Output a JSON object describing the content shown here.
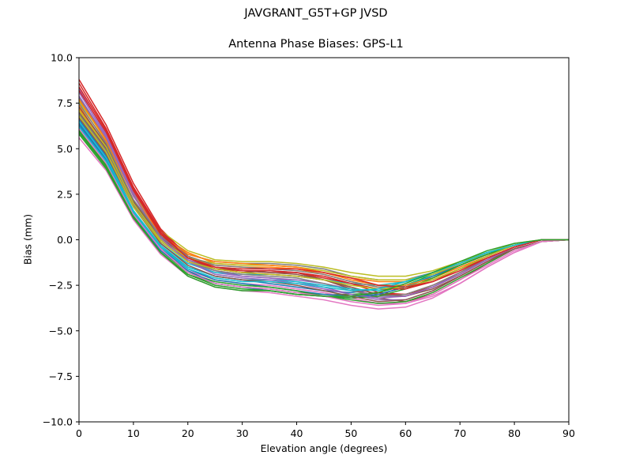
{
  "figure": {
    "suptitle": "JAVGRANT_G5T+GP JVSD"
  },
  "chart_data": {
    "type": "line",
    "title": "Antenna Phase Biases: GPS-L1",
    "xlabel": "Elevation angle (degrees)",
    "ylabel": "Bias (mm)",
    "xlim": [
      0,
      90
    ],
    "ylim": [
      -10,
      10
    ],
    "xticks": [
      0,
      10,
      20,
      30,
      40,
      50,
      60,
      70,
      80,
      90
    ],
    "yticks": [
      -10.0,
      -7.5,
      -5.0,
      -2.5,
      0.0,
      2.5,
      5.0,
      7.5,
      10.0
    ],
    "xtick_labels": [
      "0",
      "10",
      "20",
      "30",
      "40",
      "50",
      "60",
      "70",
      "80",
      "90"
    ],
    "ytick_labels": [
      "−10.0",
      "−7.5",
      "−5.0",
      "−2.5",
      "0.0",
      "2.5",
      "5.0",
      "7.5",
      "10.0"
    ],
    "grid": false,
    "legend": false,
    "x": [
      0,
      5,
      10,
      15,
      20,
      25,
      30,
      35,
      40,
      45,
      50,
      55,
      60,
      65,
      70,
      75,
      80,
      85,
      90
    ],
    "series": [
      {
        "color": "#1f77b4",
        "values": [
          6.6,
          4.6,
          1.6,
          -0.4,
          -1.5,
          -2.0,
          -2.2,
          -2.4,
          -2.6,
          -2.8,
          -2.9,
          -2.7,
          -2.3,
          -1.8,
          -1.2,
          -0.7,
          -0.3,
          0.0,
          0.0
        ]
      },
      {
        "color": "#ff7f0e",
        "values": [
          7.4,
          5.4,
          2.4,
          0.3,
          -0.7,
          -1.3,
          -1.4,
          -1.4,
          -1.5,
          -1.8,
          -2.1,
          -2.3,
          -2.3,
          -1.9,
          -1.4,
          -0.8,
          -0.3,
          0.0,
          0.0
        ]
      },
      {
        "color": "#2ca02c",
        "values": [
          5.9,
          4.0,
          1.2,
          -0.7,
          -1.9,
          -2.4,
          -2.6,
          -2.7,
          -2.9,
          -3.0,
          -3.0,
          -2.9,
          -2.5,
          -1.9,
          -1.3,
          -0.7,
          -0.3,
          0.0,
          0.0
        ]
      },
      {
        "color": "#d62728",
        "values": [
          8.8,
          6.3,
          3.1,
          0.6,
          -0.9,
          -1.5,
          -1.7,
          -1.8,
          -1.8,
          -2.0,
          -2.4,
          -2.9,
          -3.0,
          -2.6,
          -1.9,
          -1.1,
          -0.4,
          0.0,
          0.0
        ]
      },
      {
        "color": "#9467bd",
        "values": [
          8.3,
          5.8,
          2.6,
          0.2,
          -1.2,
          -1.8,
          -2.0,
          -2.1,
          -2.2,
          -2.4,
          -2.7,
          -3.1,
          -3.1,
          -2.6,
          -1.8,
          -1.1,
          -0.4,
          0.0,
          0.0
        ]
      },
      {
        "color": "#8c564b",
        "values": [
          7.0,
          5.0,
          2.0,
          0.0,
          -1.1,
          -1.6,
          -1.8,
          -1.7,
          -1.8,
          -2.2,
          -2.7,
          -3.2,
          -3.4,
          -3.0,
          -2.2,
          -1.3,
          -0.5,
          -0.1,
          0.0
        ]
      },
      {
        "color": "#e377c2",
        "values": [
          6.2,
          4.3,
          1.5,
          -0.5,
          -1.7,
          -2.2,
          -2.4,
          -2.5,
          -2.7,
          -2.9,
          -3.2,
          -3.5,
          -3.5,
          -3.1,
          -2.4,
          -1.5,
          -0.7,
          -0.1,
          0.0
        ]
      },
      {
        "color": "#7f7f7f",
        "values": [
          7.8,
          5.6,
          2.5,
          0.4,
          -0.8,
          -1.2,
          -1.3,
          -1.3,
          -1.4,
          -1.6,
          -2.0,
          -2.2,
          -2.2,
          -1.8,
          -1.3,
          -0.7,
          -0.3,
          0.0,
          0.0
        ]
      },
      {
        "color": "#bcbd22",
        "values": [
          7.6,
          5.5,
          2.5,
          0.5,
          -0.6,
          -1.1,
          -1.2,
          -1.2,
          -1.3,
          -1.5,
          -1.8,
          -2.0,
          -2.0,
          -1.7,
          -1.2,
          -0.7,
          -0.2,
          0.0,
          0.0
        ]
      },
      {
        "color": "#17becf",
        "values": [
          6.8,
          4.7,
          1.8,
          -0.2,
          -1.3,
          -1.8,
          -1.9,
          -1.9,
          -2.0,
          -2.2,
          -2.4,
          -2.5,
          -2.3,
          -1.9,
          -1.3,
          -0.7,
          -0.3,
          0.0,
          0.0
        ]
      },
      {
        "color": "#1f77b4",
        "values": [
          6.4,
          4.4,
          1.5,
          -0.5,
          -1.6,
          -2.2,
          -2.4,
          -2.6,
          -2.8,
          -3.0,
          -3.1,
          -3.0,
          -2.6,
          -2.0,
          -1.4,
          -0.8,
          -0.3,
          0.0,
          0.0
        ]
      },
      {
        "color": "#ff7f0e",
        "values": [
          7.2,
          5.2,
          2.2,
          0.1,
          -1.0,
          -1.4,
          -1.5,
          -1.5,
          -1.6,
          -1.9,
          -2.3,
          -2.6,
          -2.6,
          -2.2,
          -1.6,
          -0.9,
          -0.3,
          0.0,
          0.0
        ]
      },
      {
        "color": "#2ca02c",
        "values": [
          6.0,
          4.1,
          1.3,
          -0.6,
          -1.8,
          -2.3,
          -2.5,
          -2.6,
          -2.8,
          -3.1,
          -3.3,
          -3.5,
          -3.4,
          -2.9,
          -2.1,
          -1.3,
          -0.5,
          -0.1,
          0.0
        ]
      },
      {
        "color": "#d62728",
        "values": [
          8.6,
          6.1,
          2.9,
          0.5,
          -0.9,
          -1.6,
          -1.8,
          -1.9,
          -2.0,
          -2.2,
          -2.6,
          -3.0,
          -3.0,
          -2.5,
          -1.8,
          -1.0,
          -0.4,
          0.0,
          0.0
        ]
      },
      {
        "color": "#9467bd",
        "values": [
          8.1,
          5.7,
          2.5,
          0.2,
          -1.1,
          -1.7,
          -2.0,
          -2.1,
          -2.3,
          -2.6,
          -3.0,
          -3.3,
          -3.3,
          -2.8,
          -2.0,
          -1.2,
          -0.5,
          -0.1,
          0.0
        ]
      },
      {
        "color": "#8c564b",
        "values": [
          7.3,
          5.2,
          2.1,
          0.1,
          -1.0,
          -1.5,
          -1.7,
          -1.8,
          -1.9,
          -2.2,
          -2.6,
          -3.0,
          -3.1,
          -2.7,
          -2.0,
          -1.2,
          -0.4,
          0.0,
          0.0
        ]
      },
      {
        "color": "#e377c2",
        "values": [
          5.6,
          3.8,
          1.1,
          -0.8,
          -2.0,
          -2.6,
          -2.8,
          -2.9,
          -3.1,
          -3.3,
          -3.6,
          -3.8,
          -3.7,
          -3.2,
          -2.4,
          -1.5,
          -0.7,
          -0.1,
          0.0
        ]
      },
      {
        "color": "#7f7f7f",
        "values": [
          6.9,
          4.9,
          1.9,
          -0.1,
          -1.2,
          -1.7,
          -1.9,
          -2.0,
          -2.1,
          -2.4,
          -2.8,
          -3.1,
          -3.0,
          -2.5,
          -1.8,
          -1.0,
          -0.4,
          0.0,
          0.0
        ]
      },
      {
        "color": "#bcbd22",
        "values": [
          7.1,
          5.1,
          2.0,
          0.0,
          -1.0,
          -1.3,
          -1.4,
          -1.4,
          -1.5,
          -1.7,
          -2.0,
          -2.2,
          -2.2,
          -1.9,
          -1.3,
          -0.8,
          -0.3,
          0.0,
          0.0
        ]
      },
      {
        "color": "#17becf",
        "values": [
          6.5,
          4.5,
          1.6,
          -0.3,
          -1.5,
          -2.0,
          -2.2,
          -2.2,
          -2.3,
          -2.5,
          -2.7,
          -2.8,
          -2.5,
          -2.0,
          -1.4,
          -0.8,
          -0.3,
          0.0,
          0.0
        ]
      },
      {
        "color": "#1f77b4",
        "values": [
          6.3,
          4.3,
          1.4,
          -0.6,
          -1.7,
          -2.4,
          -2.6,
          -2.8,
          -3.0,
          -3.1,
          -3.2,
          -3.0,
          -2.6,
          -2.0,
          -1.4,
          -0.8,
          -0.3,
          0.0,
          0.0
        ]
      },
      {
        "color": "#ff7f0e",
        "values": [
          7.7,
          5.5,
          2.4,
          0.3,
          -0.8,
          -1.2,
          -1.3,
          -1.4,
          -1.5,
          -1.8,
          -2.2,
          -2.5,
          -2.5,
          -2.1,
          -1.5,
          -0.9,
          -0.3,
          0.0,
          0.0
        ]
      },
      {
        "color": "#2ca02c",
        "values": [
          5.8,
          3.9,
          1.2,
          -0.7,
          -1.9,
          -2.5,
          -2.7,
          -2.8,
          -3.0,
          -3.1,
          -3.2,
          -3.1,
          -2.7,
          -2.1,
          -1.4,
          -0.8,
          -0.3,
          0.0,
          0.0
        ]
      },
      {
        "color": "#d62728",
        "values": [
          8.4,
          6.0,
          2.8,
          0.4,
          -1.0,
          -1.6,
          -1.7,
          -1.7,
          -1.8,
          -2.1,
          -2.4,
          -2.7,
          -2.7,
          -2.3,
          -1.6,
          -1.0,
          -0.4,
          0.0,
          0.0
        ]
      },
      {
        "color": "#9467bd",
        "values": [
          7.9,
          5.6,
          2.4,
          0.1,
          -1.2,
          -1.9,
          -2.1,
          -2.2,
          -2.4,
          -2.7,
          -3.0,
          -3.2,
          -3.1,
          -2.6,
          -1.9,
          -1.1,
          -0.4,
          0.0,
          0.0
        ]
      },
      {
        "color": "#8c564b",
        "values": [
          6.7,
          4.7,
          1.8,
          -0.2,
          -1.4,
          -2.0,
          -2.2,
          -2.3,
          -2.5,
          -2.8,
          -3.1,
          -3.4,
          -3.3,
          -2.8,
          -2.0,
          -1.2,
          -0.5,
          -0.1,
          0.0
        ]
      },
      {
        "color": "#e377c2",
        "values": [
          6.1,
          4.2,
          1.4,
          -0.5,
          -1.8,
          -2.4,
          -2.6,
          -2.7,
          -2.9,
          -3.1,
          -3.4,
          -3.6,
          -3.5,
          -3.0,
          -2.2,
          -1.4,
          -0.6,
          -0.1,
          0.0
        ]
      },
      {
        "color": "#7f7f7f",
        "values": [
          7.5,
          5.3,
          2.2,
          0.2,
          -0.9,
          -1.4,
          -1.5,
          -1.6,
          -1.7,
          -1.9,
          -2.3,
          -2.6,
          -2.6,
          -2.2,
          -1.6,
          -0.9,
          -0.3,
          0.0,
          0.0
        ]
      },
      {
        "color": "#bcbd22",
        "values": [
          6.8,
          4.8,
          1.8,
          -0.1,
          -1.2,
          -1.6,
          -1.8,
          -1.9,
          -2.0,
          -2.2,
          -2.5,
          -2.7,
          -2.6,
          -2.2,
          -1.6,
          -0.9,
          -0.3,
          0.0,
          0.0
        ]
      },
      {
        "color": "#17becf",
        "values": [
          6.2,
          4.3,
          1.5,
          -0.4,
          -1.6,
          -2.1,
          -2.3,
          -2.3,
          -2.4,
          -2.6,
          -2.8,
          -2.7,
          -2.3,
          -1.8,
          -1.3,
          -0.7,
          -0.3,
          0.0,
          0.0
        ]
      },
      {
        "color": "#d62728",
        "values": [
          8.2,
          5.9,
          2.7,
          0.3,
          -1.0,
          -1.5,
          -1.6,
          -1.6,
          -1.6,
          -1.8,
          -2.1,
          -2.5,
          -2.6,
          -2.3,
          -1.7,
          -1.0,
          -0.4,
          0.0,
          0.0
        ]
      },
      {
        "color": "#2ca02c",
        "values": [
          6.0,
          4.0,
          1.2,
          -0.7,
          -2.0,
          -2.6,
          -2.8,
          -2.8,
          -3.0,
          -3.1,
          -3.1,
          -2.9,
          -2.4,
          -1.8,
          -1.2,
          -0.6,
          -0.2,
          0.0,
          0.0
        ]
      }
    ]
  }
}
